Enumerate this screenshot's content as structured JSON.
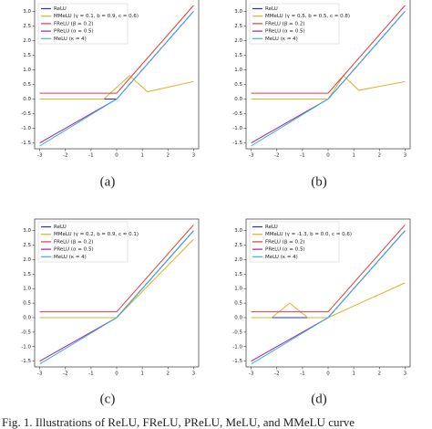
{
  "figure_caption": "Fig. 1. Illustrations of ReLU, FReLU, PReLU, MeLU, and MMeLU curve",
  "chart_data": [
    {
      "type": "line",
      "caption": "(a)",
      "xlim": [
        -3.2,
        3.2
      ],
      "ylim": [
        -1.7,
        3.45
      ],
      "xticks": [
        -3,
        -2,
        -1,
        0,
        1,
        2,
        3
      ],
      "yticks": [
        {
          "value": -1.5,
          "label": "-1.5"
        },
        {
          "value": -1,
          "label": "-1.0"
        },
        {
          "value": -0.5,
          "label": "-0.5"
        },
        {
          "value": 0,
          "label": "0.0"
        },
        {
          "value": 0.5,
          "label": "0.5"
        },
        {
          "value": 1,
          "label": "1.0"
        },
        {
          "value": 1.5,
          "label": "1.5"
        },
        {
          "value": 2,
          "label": "2.0"
        },
        {
          "value": 2.5,
          "label": "2.5"
        },
        {
          "value": 3,
          "label": "3.0"
        }
      ],
      "legend": "upper left",
      "series": [
        {
          "name": "ReLU",
          "color": "#2b2bd9",
          "x": [
            -3,
            0,
            3
          ],
          "values": [
            0,
            0,
            3
          ]
        },
        {
          "name": "MMeLU (γ = 0.1, b = 0.9, c = 0.6)",
          "color": "#d4b62a",
          "x": [
            -3,
            -0.5,
            0.5,
            1.2,
            3
          ],
          "values": [
            0,
            0,
            0.8,
            0.25,
            0.6
          ]
        },
        {
          "name": "FReLU (β = 0.2)",
          "color": "#e8383b",
          "x": [
            -3,
            0,
            3
          ],
          "values": [
            0.2,
            0.2,
            3.2
          ]
        },
        {
          "name": "PReLU (α = 0.5)",
          "color": "#a020a8",
          "x": [
            -3,
            0,
            3
          ],
          "values": [
            -1.5,
            0,
            3
          ]
        },
        {
          "name": "MeLU (κ = 4)",
          "color": "#3bb5d8",
          "x": [
            -3,
            0,
            3
          ],
          "values": [
            -1.6,
            0,
            3
          ]
        }
      ]
    },
    {
      "type": "line",
      "caption": "(b)",
      "xlim": [
        -3.2,
        3.2
      ],
      "ylim": [
        -1.7,
        3.45
      ],
      "xticks": [
        -3,
        -2,
        -1,
        0,
        1,
        2,
        3
      ],
      "yticks": [
        {
          "value": -1.5,
          "label": "-1.5"
        },
        {
          "value": -1,
          "label": "-1.0"
        },
        {
          "value": -0.5,
          "label": "-0.5"
        },
        {
          "value": 0,
          "label": "0.0"
        },
        {
          "value": 0.5,
          "label": "0.5"
        },
        {
          "value": 1,
          "label": "1.0"
        },
        {
          "value": 1.5,
          "label": "1.5"
        },
        {
          "value": 2,
          "label": "2.0"
        },
        {
          "value": 2.5,
          "label": "2.5"
        },
        {
          "value": 3,
          "label": "3.0"
        }
      ],
      "legend": "upper left",
      "series": [
        {
          "name": "ReLU",
          "color": "#2b2bd9",
          "x": [
            -3,
            0,
            3
          ],
          "values": [
            0,
            0,
            3
          ]
        },
        {
          "name": "MMeLU (γ = 0.5, b = 0.5, c = 0.8)",
          "color": "#d4b62a",
          "x": [
            -3,
            0,
            0.6,
            1.2,
            3
          ],
          "values": [
            0,
            0,
            0.8,
            0.3,
            0.6
          ]
        },
        {
          "name": "FReLU (β = 0.2)",
          "color": "#e8383b",
          "x": [
            -3,
            0,
            3
          ],
          "values": [
            0.2,
            0.2,
            3.2
          ]
        },
        {
          "name": "PReLU (α = 0.5)",
          "color": "#a020a8",
          "x": [
            -3,
            0,
            3
          ],
          "values": [
            -1.5,
            0,
            3
          ]
        },
        {
          "name": "MeLU (κ = 4)",
          "color": "#3bb5d8",
          "x": [
            -3,
            0,
            3
          ],
          "values": [
            -1.6,
            0,
            3
          ]
        }
      ]
    },
    {
      "type": "line",
      "caption": "(c)",
      "xlim": [
        -3.2,
        3.2
      ],
      "ylim": [
        -1.7,
        3.4
      ],
      "xticks": [
        -3,
        -2,
        -1,
        0,
        1,
        2,
        3
      ],
      "yticks": [
        {
          "value": -1.5,
          "label": "-1.5"
        },
        {
          "value": -1,
          "label": "-1.0"
        },
        {
          "value": -0.5,
          "label": "-0.5"
        },
        {
          "value": 0,
          "label": "0.0"
        },
        {
          "value": 0.5,
          "label": "0.5"
        },
        {
          "value": 1,
          "label": "1.0"
        },
        {
          "value": 1.5,
          "label": "1.5"
        },
        {
          "value": 2,
          "label": "2.0"
        },
        {
          "value": 2.5,
          "label": "2.5"
        },
        {
          "value": 3,
          "label": "3.0"
        }
      ],
      "legend": "upper left",
      "series": [
        {
          "name": "ReLU",
          "color": "#2b2bd9",
          "x": [
            -3,
            0,
            3
          ],
          "values": [
            0,
            0,
            3
          ]
        },
        {
          "name": "MMeLU (γ = 0.2, b = 0.9, c = 0.1)",
          "color": "#d4b62a",
          "x": [
            -3,
            0,
            3
          ],
          "values": [
            0,
            0,
            2.7
          ]
        },
        {
          "name": "FReLU (β = 0.2)",
          "color": "#e8383b",
          "x": [
            -3,
            0,
            3
          ],
          "values": [
            0.2,
            0.2,
            3.2
          ]
        },
        {
          "name": "PReLU (α = 0.5)",
          "color": "#a020a8",
          "x": [
            -3,
            0,
            3
          ],
          "values": [
            -1.5,
            0,
            3
          ]
        },
        {
          "name": "MeLU (κ = 4)",
          "color": "#3bb5d8",
          "x": [
            -3,
            0,
            3
          ],
          "values": [
            -1.6,
            0,
            3
          ]
        }
      ]
    },
    {
      "type": "line",
      "caption": "(d)",
      "xlim": [
        -3.2,
        3.2
      ],
      "ylim": [
        -1.7,
        3.4
      ],
      "xticks": [
        -3,
        -2,
        -1,
        0,
        1,
        2,
        3
      ],
      "yticks": [
        {
          "value": -1.5,
          "label": "-1.5"
        },
        {
          "value": -1,
          "label": "-1.0"
        },
        {
          "value": -0.5,
          "label": "-0.5"
        },
        {
          "value": 0,
          "label": "0.0"
        },
        {
          "value": 0.5,
          "label": "0.5"
        },
        {
          "value": 1,
          "label": "1.0"
        },
        {
          "value": 1.5,
          "label": "1.5"
        },
        {
          "value": 2,
          "label": "2.0"
        },
        {
          "value": 2.5,
          "label": "2.5"
        },
        {
          "value": 3,
          "label": "3.0"
        }
      ],
      "legend": "upper left",
      "series": [
        {
          "name": "ReLU",
          "color": "#2b2bd9",
          "x": [
            -3,
            0,
            3
          ],
          "values": [
            0,
            0,
            3
          ]
        },
        {
          "name": "MMeLU (γ = -1.3, b = 0.0, c = 0.6)",
          "color": "#d4b62a",
          "x": [
            -3,
            -2.2,
            -1.5,
            -0.8,
            0,
            3
          ],
          "values": [
            0,
            0,
            0.5,
            0,
            0,
            1.2
          ]
        },
        {
          "name": "FReLU (β = 0.2)",
          "color": "#e8383b",
          "x": [
            -3,
            0,
            3
          ],
          "values": [
            0.2,
            0.2,
            3.2
          ]
        },
        {
          "name": "PReLU (α = 0.5)",
          "color": "#a020a8",
          "x": [
            -3,
            0,
            3
          ],
          "values": [
            -1.5,
            0,
            3
          ]
        },
        {
          "name": "MeLU (κ = 4)",
          "color": "#3bb5d8",
          "x": [
            -3,
            0,
            3
          ],
          "values": [
            -1.6,
            0,
            3
          ]
        }
      ]
    }
  ]
}
